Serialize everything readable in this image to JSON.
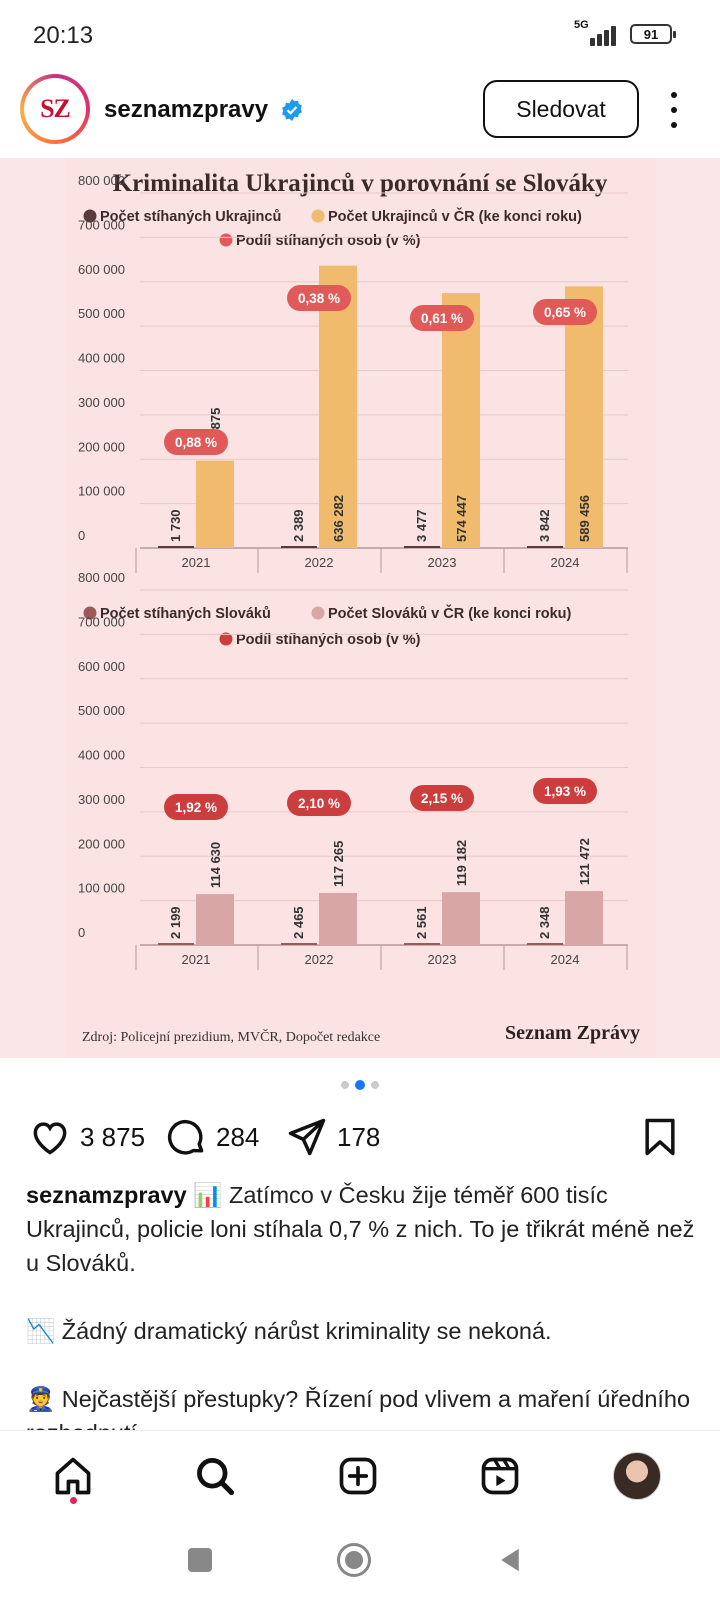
{
  "status": {
    "time": "20:13",
    "network": "5G",
    "battery": "91"
  },
  "post": {
    "username": "seznamzpravy",
    "avatar_text": "SZ",
    "follow_label": "Sledovat"
  },
  "chart_title": "Kriminalita Ukrajinců v porovnání se Slováky",
  "chart_data": [
    {
      "type": "bar",
      "categories": [
        "2021",
        "2022",
        "2023",
        "2024"
      ],
      "ylim": [
        0,
        800000
      ],
      "yticks": [
        "0",
        "100 000",
        "200 000",
        "300 000",
        "400 000",
        "500 000",
        "600 000",
        "700 000",
        "800 000"
      ],
      "legend": [
        "Počet stíhaných Ukrajinců",
        "Počet Ukrajinců v ČR (ke konci roku)",
        "Podíl stíhaných osob (v %)"
      ],
      "series": [
        {
          "name": "Počet stíhaných Ukrajinců",
          "values": [
            1730,
            2389,
            3477,
            3842
          ],
          "labels": [
            "1 730",
            "2 389",
            "3 477",
            "3 842"
          ],
          "color": "#5a3a3a"
        },
        {
          "name": "Počet Ukrajinců v ČR (ke konci roku)",
          "values": [
            196875,
            636282,
            574447,
            589456
          ],
          "labels": [
            "196 875",
            "636 282",
            "574 447",
            "589 456"
          ],
          "color": "#f0bb6c"
        }
      ],
      "share_labels": [
        "0,88 %",
        "0,38 %",
        "0,61 %",
        "0,65 %"
      ],
      "share_color": "#e05a5a"
    },
    {
      "type": "bar",
      "categories": [
        "2021",
        "2022",
        "2023",
        "2024"
      ],
      "ylim": [
        0,
        800000
      ],
      "yticks": [
        "0",
        "100 000",
        "200 000",
        "300 000",
        "400 000",
        "500 000",
        "600 000",
        "700 000",
        "800 000"
      ],
      "legend": [
        "Počet stíhaných Slováků",
        "Počet Slováků v ČR (ke konci roku)",
        "Podíl stíhaných osob (v %)"
      ],
      "series": [
        {
          "name": "Počet stíhaných Slováků",
          "values": [
            2199,
            2465,
            2561,
            2348
          ],
          "labels": [
            "2 199",
            "2 465",
            "2 561",
            "2 348"
          ],
          "color": "#9a5a5a"
        },
        {
          "name": "Počet Slováků v ČR (ke konci roku)",
          "values": [
            114630,
            117265,
            119182,
            121472
          ],
          "labels": [
            "114 630",
            "117 265",
            "119 182",
            "121 472"
          ],
          "color": "#d9a6a6"
        }
      ],
      "share_labels": [
        "1,92 %",
        "2,10 %",
        "2,15 %",
        "1,93 %"
      ],
      "share_color": "#cc3d3d"
    }
  ],
  "source": "Zdroj: Policejní prezidium, MVČR, Dopočet redakce",
  "brand": "Seznam Zprávy",
  "actions": {
    "likes": "3 875",
    "comments": "284",
    "shares": "178"
  },
  "caption": {
    "user": "seznamzpravy",
    "line1": "📊 Zatímco v Česku žije téměř 600 tisíc Ukrajinců, policie loni stíhala 0,7 % z nich. To je třikrát méně než u Slováků.",
    "line2": "📉 Žádný dramatický nárůst kriminality se nekoná.",
    "line3": "👮 Nejčastější přestupky? Řízení pod vlivem a maření úředního rozhodnutí."
  },
  "colors": {
    "accent": "#1877f2",
    "card_bg": "#fae6e6"
  }
}
